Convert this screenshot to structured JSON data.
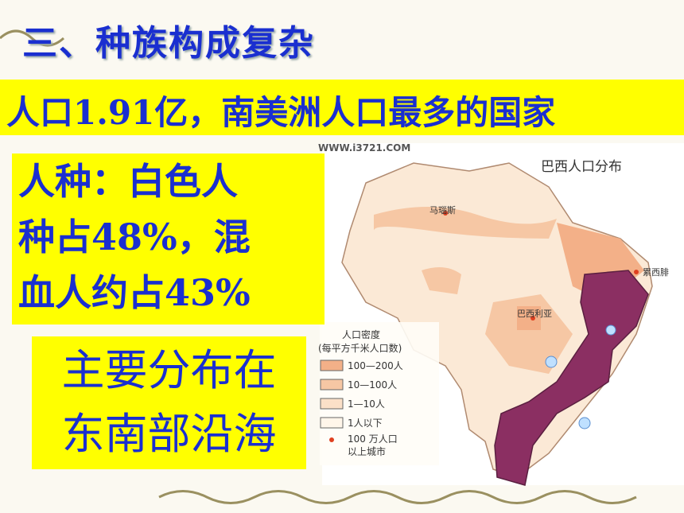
{
  "title": "三、种族构成复杂",
  "banner": "人口1.91亿，南美洲人口最多的国家",
  "race_box": {
    "lines": [
      "人种：白色人",
      "种占48%，混",
      "血人约占43%"
    ]
  },
  "distribution_box": {
    "lines": [
      "主要分布在",
      "东南部沿海"
    ]
  },
  "map": {
    "watermark": "WWW.i3721.COM",
    "title": "巴西人口分布",
    "cities": [
      "马瑙斯",
      "巴西利亚",
      "累西腓"
    ],
    "legend": {
      "title": "人口密度",
      "subtitle": "(每平方千米人口数)",
      "items": [
        "100—200人",
        "10—100人",
        "1—10人",
        "1人以下",
        "100 万人口",
        "以上城市"
      ]
    }
  }
}
